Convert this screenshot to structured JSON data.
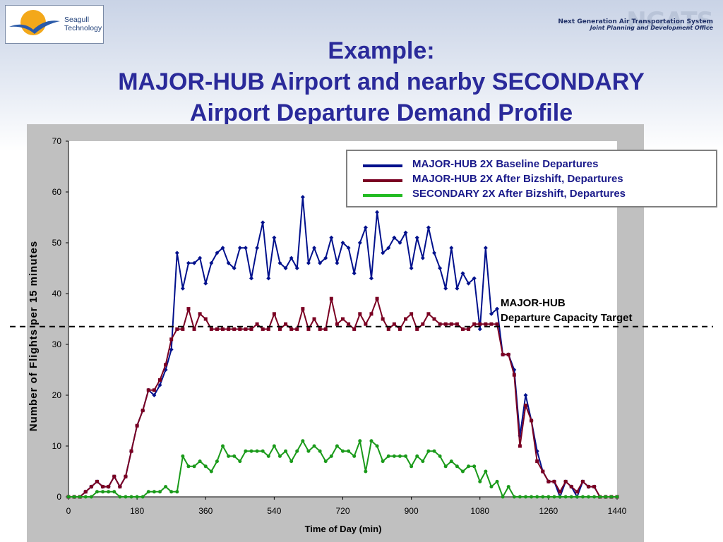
{
  "slide": {
    "title_line1": "Example:",
    "title_line2": "MAJOR-HUB Airport and nearby SECONDARY",
    "title_line3": "Airport Departure Demand Profile",
    "logo_text_1": "Seagull",
    "logo_text_2": "Technology",
    "ngats_line1": "Next Generation Air Transportation System",
    "ngats_line2": "Joint Planning and Development Office",
    "ngats_logo": "NGATS"
  },
  "chart_data": {
    "type": "line",
    "title": "",
    "xlabel": "Time of Day (min)",
    "ylabel": "Number of Flights per 15 minutes",
    "xlim": [
      0,
      1440
    ],
    "ylim": [
      0,
      70
    ],
    "xticks": [
      0,
      180,
      360,
      540,
      720,
      900,
      1080,
      1260,
      1440
    ],
    "yticks": [
      0,
      10,
      20,
      30,
      40,
      50,
      60,
      70
    ],
    "grid": false,
    "legend_position": "top-right",
    "x": [
      0,
      15,
      30,
      45,
      60,
      75,
      90,
      105,
      120,
      135,
      150,
      165,
      180,
      195,
      210,
      225,
      240,
      255,
      270,
      285,
      300,
      315,
      330,
      345,
      360,
      375,
      390,
      405,
      420,
      435,
      450,
      465,
      480,
      495,
      510,
      525,
      540,
      555,
      570,
      585,
      600,
      615,
      630,
      645,
      660,
      675,
      690,
      705,
      720,
      735,
      750,
      765,
      780,
      795,
      810,
      825,
      840,
      855,
      870,
      885,
      900,
      915,
      930,
      945,
      960,
      975,
      990,
      1005,
      1020,
      1035,
      1050,
      1065,
      1080,
      1095,
      1110,
      1125,
      1140,
      1155,
      1170,
      1185,
      1200,
      1215,
      1230,
      1245,
      1260,
      1275,
      1290,
      1305,
      1320,
      1335,
      1350,
      1365,
      1380,
      1395,
      1410,
      1425,
      1440
    ],
    "series": [
      {
        "name": "MAJOR-HUB 2X Baseline Departures",
        "color": "#00108c",
        "values": [
          0,
          0,
          0,
          1,
          2,
          3,
          2,
          2,
          4,
          2,
          4,
          9,
          14,
          17,
          21,
          20,
          22,
          25,
          29,
          48,
          41,
          46,
          46,
          47,
          42,
          46,
          48,
          49,
          46,
          45,
          49,
          49,
          43,
          49,
          54,
          43,
          51,
          46,
          45,
          47,
          45,
          59,
          46,
          49,
          46,
          47,
          51,
          46,
          50,
          49,
          44,
          50,
          53,
          43,
          56,
          48,
          49,
          51,
          50,
          52,
          45,
          51,
          47,
          53,
          48,
          45,
          41,
          49,
          41,
          44,
          42,
          43,
          33,
          49,
          36,
          37,
          28,
          28,
          25,
          12,
          20,
          15,
          9,
          5,
          3,
          3,
          0,
          3,
          2,
          0,
          3,
          2,
          2,
          0,
          0,
          0,
          0
        ]
      },
      {
        "name": "MAJOR-HUB 2X After Bizshift,  Departures",
        "color": "#7a0022",
        "values": [
          0,
          0,
          0,
          1,
          2,
          3,
          2,
          2,
          4,
          2,
          4,
          9,
          14,
          17,
          21,
          21,
          23,
          26,
          31,
          33,
          33,
          37,
          33,
          36,
          35,
          33,
          33,
          33,
          33,
          33,
          33,
          33,
          33,
          34,
          33,
          33,
          36,
          33,
          34,
          33,
          33,
          37,
          33,
          35,
          33,
          33,
          39,
          34,
          35,
          34,
          33,
          36,
          34,
          36,
          39,
          35,
          33,
          34,
          33,
          35,
          36,
          33,
          34,
          36,
          35,
          34,
          34,
          34,
          34,
          33,
          33,
          34,
          34,
          34,
          34,
          34,
          28,
          28,
          24,
          10,
          18,
          15,
          7,
          5,
          3,
          3,
          1,
          3,
          2,
          1,
          3,
          2,
          2,
          0,
          0,
          0,
          0
        ]
      },
      {
        "name": "SECONDARY 2X After Bizshift, Departures",
        "color": "#1a9a1a",
        "values": [
          0,
          0,
          0,
          0,
          0,
          1,
          1,
          1,
          1,
          0,
          0,
          0,
          0,
          0,
          1,
          1,
          1,
          2,
          1,
          1,
          8,
          6,
          6,
          7,
          6,
          5,
          7,
          10,
          8,
          8,
          7,
          9,
          9,
          9,
          9,
          8,
          10,
          8,
          9,
          7,
          9,
          11,
          9,
          10,
          9,
          7,
          8,
          10,
          9,
          9,
          8,
          11,
          5,
          11,
          10,
          7,
          8,
          8,
          8,
          8,
          6,
          8,
          7,
          9,
          9,
          8,
          6,
          7,
          6,
          5,
          6,
          6,
          3,
          5,
          2,
          3,
          0,
          2,
          0,
          0,
          0,
          0,
          0,
          0,
          0,
          0,
          0,
          0,
          0,
          0,
          0,
          0,
          0,
          0,
          0,
          0,
          0
        ]
      }
    ],
    "capacity_target": {
      "value": 33.5,
      "label_line1": "MAJOR-HUB",
      "label_line2": "Departure Capacity Target"
    }
  }
}
